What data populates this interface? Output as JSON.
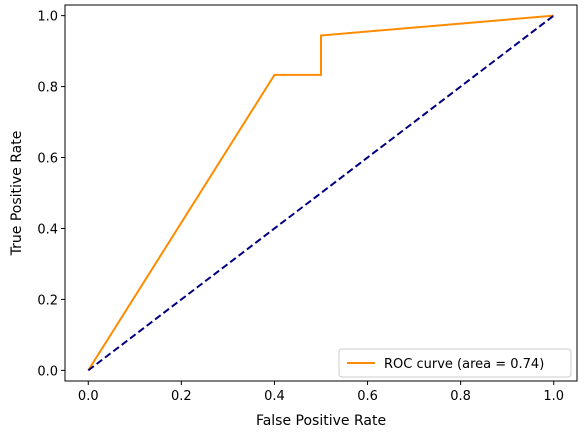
{
  "chart_data": {
    "type": "line",
    "title": "",
    "xlabel": "False Positive Rate",
    "ylabel": "True Positive Rate",
    "xlim": [
      -0.05,
      1.05
    ],
    "ylim": [
      -0.03,
      1.03
    ],
    "x_ticks": [
      0.0,
      0.2,
      0.4,
      0.6,
      0.8,
      1.0
    ],
    "x_tick_labels": [
      "0.0",
      "0.2",
      "0.4",
      "0.6",
      "0.8",
      "1.0"
    ],
    "y_ticks": [
      0.0,
      0.2,
      0.4,
      0.6,
      0.8,
      1.0
    ],
    "y_tick_labels": [
      "0.0",
      "0.2",
      "0.4",
      "0.6",
      "0.8",
      "1.0"
    ],
    "grid": false,
    "legend_position": "lower-right",
    "series": [
      {
        "name": "ROC curve (area = 0.74)",
        "color": "#ff8c00",
        "line_style": "solid",
        "x": [
          0.0,
          0.4,
          0.5,
          0.5,
          1.0
        ],
        "y": [
          0.0,
          0.833,
          0.833,
          0.944,
          1.0
        ]
      },
      {
        "color": "#000080",
        "line_style": "dashed",
        "x": [
          0.0,
          1.0
        ],
        "y": [
          0.0,
          1.0
        ]
      }
    ]
  }
}
